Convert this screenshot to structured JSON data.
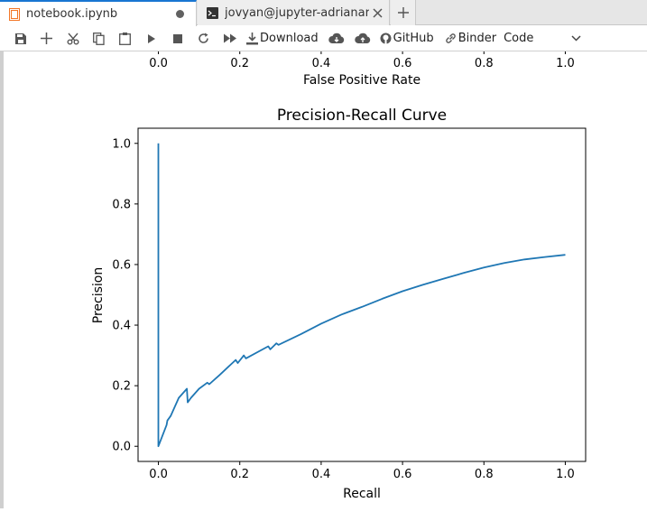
{
  "tabs": [
    {
      "label": "notebook.ipynb",
      "icon": "notebook-icon",
      "dirty": true
    },
    {
      "label": "jovyan@jupyter-adrianarmas",
      "icon": "terminal-icon"
    }
  ],
  "toolbar": {
    "download_label": "Download",
    "github_label": "GitHub",
    "binder_label": "Binder",
    "kernel_cell_type": "Code"
  },
  "roc_partial": {
    "xticks": [
      "0.0",
      "0.2",
      "0.4",
      "0.6",
      "0.8",
      "1.0"
    ],
    "xlabel": "False Positive Rate"
  },
  "chart_data": {
    "type": "line",
    "title": "Precision-Recall Curve",
    "xlabel": "Recall",
    "ylabel": "Precision",
    "xlim": [
      -0.05,
      1.05
    ],
    "ylim": [
      -0.05,
      1.05
    ],
    "xticks": [
      0.0,
      0.2,
      0.4,
      0.6,
      0.8,
      1.0
    ],
    "yticks": [
      0.0,
      0.2,
      0.4,
      0.6,
      0.8,
      1.0
    ],
    "grid": false,
    "series": [
      {
        "color": "#1f77b4",
        "x": [
          0.0,
          0.0,
          0.02,
          0.022,
          0.03,
          0.05,
          0.07,
          0.072,
          0.08,
          0.1,
          0.12,
          0.125,
          0.15,
          0.19,
          0.195,
          0.21,
          0.215,
          0.27,
          0.275,
          0.29,
          0.295,
          0.35,
          0.4,
          0.45,
          0.5,
          0.55,
          0.6,
          0.65,
          0.7,
          0.75,
          0.8,
          0.85,
          0.9,
          0.95,
          1.0
        ],
        "y": [
          1.0,
          0.0,
          0.07,
          0.085,
          0.1,
          0.16,
          0.19,
          0.145,
          0.16,
          0.19,
          0.21,
          0.205,
          0.235,
          0.285,
          0.275,
          0.3,
          0.29,
          0.33,
          0.32,
          0.34,
          0.335,
          0.37,
          0.405,
          0.435,
          0.46,
          0.487,
          0.512,
          0.533,
          0.553,
          0.572,
          0.59,
          0.605,
          0.617,
          0.625,
          0.632
        ]
      }
    ]
  }
}
